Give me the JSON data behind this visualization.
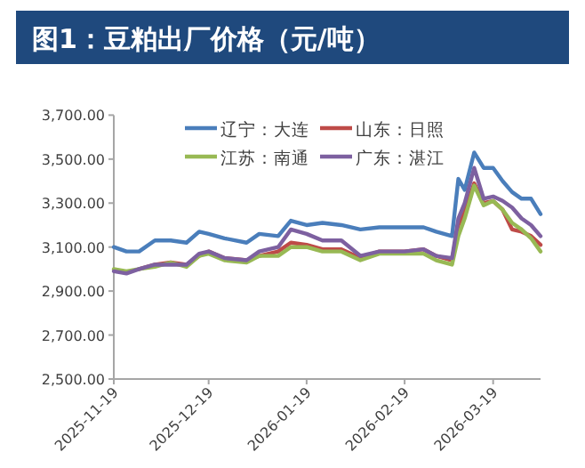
{
  "chart_data": {
    "type": "line",
    "title": "图1：豆粕出厂价格（元/吨）",
    "x": [
      "2025-11-19",
      "2025-11-23",
      "2025-11-27",
      "2025-12-02",
      "2025-12-07",
      "2025-12-12",
      "2025-12-16",
      "2025-12-19",
      "2025-12-24",
      "2025-12-31",
      "2026-01-04",
      "2026-01-10",
      "2026-01-14",
      "2026-01-19",
      "2026-01-24",
      "2026-01-30",
      "2026-02-05",
      "2026-02-11",
      "2026-02-19",
      "2026-02-25",
      "2026-03-01",
      "2026-03-06",
      "2026-03-08",
      "2026-03-10",
      "2026-03-13",
      "2026-03-16",
      "2026-03-19",
      "2026-03-22",
      "2026-03-25",
      "2026-03-28",
      "2026-03-31",
      "2026-04-03"
    ],
    "series": [
      {
        "name": "辽宁：大连",
        "color": "#4a7ebb",
        "values": [
          3100,
          3080,
          3080,
          3130,
          3130,
          3120,
          3170,
          3160,
          3140,
          3120,
          3160,
          3150,
          3220,
          3200,
          3210,
          3200,
          3180,
          3190,
          3190,
          3190,
          3170,
          3150,
          3410,
          3360,
          3530,
          3460,
          3460,
          3400,
          3350,
          3320,
          3320,
          3250
        ]
      },
      {
        "name": "山东：日照",
        "color": "#be4b48",
        "values": [
          null,
          null,
          3000,
          3020,
          3030,
          3020,
          3060,
          3080,
          3050,
          3040,
          3060,
          3080,
          3120,
          3110,
          3090,
          3090,
          3050,
          3080,
          3080,
          3090,
          3060,
          3040,
          3200,
          3260,
          3390,
          3300,
          3310,
          3270,
          3180,
          3170,
          3150,
          3110
        ]
      },
      {
        "name": "江苏：南通",
        "color": "#98b954",
        "values": [
          3000,
          2990,
          3000,
          3010,
          3030,
          3010,
          3060,
          3070,
          3040,
          3030,
          3060,
          3060,
          3100,
          3100,
          3080,
          3080,
          3040,
          3070,
          3070,
          3070,
          3040,
          3020,
          3150,
          3230,
          3380,
          3290,
          3310,
          3270,
          3210,
          3180,
          3140,
          3080
        ]
      },
      {
        "name": "广东：湛江",
        "color": "#7d60a0",
        "values": [
          2990,
          2980,
          3000,
          3020,
          3020,
          3020,
          3070,
          3080,
          3050,
          3040,
          3080,
          3100,
          3180,
          3160,
          3130,
          3130,
          3060,
          3080,
          3080,
          3090,
          3060,
          3050,
          3230,
          3300,
          3460,
          3320,
          3330,
          3310,
          3280,
          3230,
          3200,
          3150
        ]
      }
    ],
    "xlim": [
      "2025-11-19",
      "2026-04-03"
    ],
    "xticks": [
      "2025-11-19",
      "2025-12-19",
      "2026-01-19",
      "2026-02-19",
      "2026-03-19"
    ],
    "ylim": [
      2500,
      3700
    ],
    "yticks": [
      {
        "value": 2500,
        "label": "2,500.00"
      },
      {
        "value": 2700,
        "label": "2,700.00"
      },
      {
        "value": 2900,
        "label": "2,900.00"
      },
      {
        "value": 3100,
        "label": "3,100.00"
      },
      {
        "value": 3300,
        "label": "3,300.00"
      },
      {
        "value": 3500,
        "label": "3,500.00"
      },
      {
        "value": 3700,
        "label": "3,700.00"
      }
    ],
    "legend": "top",
    "grid": false,
    "marker": "none",
    "line_style": "solid"
  }
}
